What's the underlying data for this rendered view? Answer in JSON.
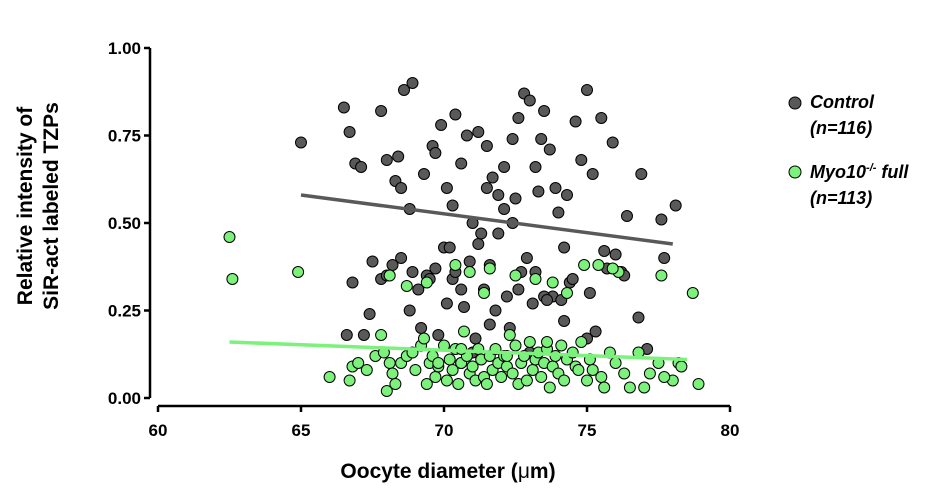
{
  "chart_data": {
    "type": "scatter",
    "xlabel_main": "Oocyte diameter (",
    "xlabel_mu": "μ",
    "xlabel_end": "m)",
    "ylabel_line1": "Relative intensity of",
    "ylabel_line2": "SiR-act labeled TZPs",
    "xlim": [
      60,
      80
    ],
    "ylim": [
      0,
      1
    ],
    "x_ticks": [
      "60",
      "65",
      "70",
      "75",
      "80"
    ],
    "x_tick_values": [
      60,
      65,
      70,
      75,
      80
    ],
    "y_ticks": [
      "1.00",
      "0.75",
      "0.50",
      "0.25",
      "0.00"
    ],
    "y_tick_values": [
      1.0,
      0.75,
      0.5,
      0.25,
      0.0
    ],
    "grid": false,
    "legend_position": "right",
    "series": [
      {
        "name": "Control",
        "name_line2": "(n=116)",
        "color": "#595959",
        "fit": {
          "x": [
            65,
            78
          ],
          "y": [
            0.58,
            0.44
          ]
        },
        "points": [
          [
            65.0,
            0.73
          ],
          [
            66.5,
            0.83
          ],
          [
            66.7,
            0.76
          ],
          [
            66.9,
            0.67
          ],
          [
            67.1,
            0.66
          ],
          [
            67.8,
            0.82
          ],
          [
            68.3,
            0.62
          ],
          [
            68.6,
            0.88
          ],
          [
            68.9,
            0.9
          ],
          [
            68.4,
            0.69
          ],
          [
            68.0,
            0.68
          ],
          [
            68.5,
            0.6
          ],
          [
            68.8,
            0.54
          ],
          [
            69.3,
            0.64
          ],
          [
            69.6,
            0.72
          ],
          [
            69.9,
            0.78
          ],
          [
            69.7,
            0.7
          ],
          [
            70.1,
            0.6
          ],
          [
            70.3,
            0.55
          ],
          [
            70.4,
            0.81
          ],
          [
            70.6,
            0.67
          ],
          [
            70.8,
            0.75
          ],
          [
            71.0,
            0.5
          ],
          [
            71.2,
            0.76
          ],
          [
            71.5,
            0.72
          ],
          [
            71.7,
            0.63
          ],
          [
            71.9,
            0.58
          ],
          [
            72.1,
            0.66
          ],
          [
            72.4,
            0.74
          ],
          [
            72.6,
            0.8
          ],
          [
            72.8,
            0.87
          ],
          [
            73.0,
            0.85
          ],
          [
            73.2,
            0.66
          ],
          [
            73.4,
            0.74
          ],
          [
            73.5,
            0.82
          ],
          [
            73.7,
            0.71
          ],
          [
            73.9,
            0.6
          ],
          [
            74.0,
            0.53
          ],
          [
            74.3,
            0.58
          ],
          [
            74.6,
            0.79
          ],
          [
            74.8,
            0.68
          ],
          [
            75.0,
            0.88
          ],
          [
            75.2,
            0.64
          ],
          [
            75.5,
            0.8
          ],
          [
            75.9,
            0.73
          ],
          [
            76.4,
            0.52
          ],
          [
            76.9,
            0.64
          ],
          [
            77.6,
            0.51
          ],
          [
            78.1,
            0.55
          ],
          [
            76.2,
            0.36
          ],
          [
            75.6,
            0.42
          ],
          [
            75.1,
            0.3
          ],
          [
            74.4,
            0.33
          ],
          [
            74.2,
            0.43
          ],
          [
            73.8,
            0.29
          ],
          [
            73.5,
            0.29
          ],
          [
            73.2,
            0.36
          ],
          [
            72.9,
            0.4
          ],
          [
            72.6,
            0.31
          ],
          [
            72.4,
            0.5
          ],
          [
            72.1,
            0.54
          ],
          [
            71.9,
            0.47
          ],
          [
            71.6,
            0.38
          ],
          [
            71.4,
            0.31
          ],
          [
            71.2,
            0.44
          ],
          [
            70.9,
            0.39
          ],
          [
            70.6,
            0.31
          ],
          [
            70.3,
            0.34
          ],
          [
            70.0,
            0.43
          ],
          [
            69.7,
            0.37
          ],
          [
            69.4,
            0.35
          ],
          [
            69.1,
            0.31
          ],
          [
            68.8,
            0.25
          ],
          [
            68.5,
            0.4
          ],
          [
            68.2,
            0.38
          ],
          [
            67.8,
            0.34
          ],
          [
            67.4,
            0.24
          ],
          [
            67.2,
            0.18
          ],
          [
            66.6,
            0.18
          ],
          [
            66.8,
            0.33
          ],
          [
            67.5,
            0.39
          ],
          [
            68.0,
            0.35
          ],
          [
            68.9,
            0.36
          ],
          [
            69.5,
            0.34
          ],
          [
            70.2,
            0.43
          ],
          [
            70.7,
            0.26
          ],
          [
            71.3,
            0.47
          ],
          [
            71.8,
            0.25
          ],
          [
            72.2,
            0.29
          ],
          [
            72.7,
            0.36
          ],
          [
            73.1,
            0.27
          ],
          [
            73.6,
            0.28
          ],
          [
            74.1,
            0.28
          ],
          [
            74.5,
            0.34
          ],
          [
            75.3,
            0.19
          ],
          [
            75.7,
            0.37
          ],
          [
            76.3,
            0.35
          ],
          [
            76.8,
            0.23
          ],
          [
            77.1,
            0.14
          ],
          [
            77.7,
            0.4
          ],
          [
            69.8,
            0.18
          ],
          [
            70.1,
            0.27
          ],
          [
            70.6,
            0.1
          ],
          [
            71.1,
            0.17
          ],
          [
            71.6,
            0.21
          ],
          [
            72.3,
            0.2
          ],
          [
            73.0,
            0.13
          ],
          [
            74.2,
            0.22
          ],
          [
            75.0,
            0.17
          ],
          [
            76.0,
            0.41
          ],
          [
            69.2,
            0.2
          ],
          [
            70.4,
            0.36
          ],
          [
            71.5,
            0.6
          ],
          [
            72.5,
            0.57
          ],
          [
            73.3,
            0.59
          ],
          [
            71.0,
            0.13
          ]
        ]
      },
      {
        "name": "Myo10",
        "name_sup": "-/-",
        "name_suffix": " full",
        "name_line2": "(n=113)",
        "color": "#7CF27C",
        "fit": {
          "x": [
            62.5,
            78.5
          ],
          "y": [
            0.16,
            0.11
          ]
        },
        "points": [
          [
            62.5,
            0.46
          ],
          [
            62.6,
            0.34
          ],
          [
            64.9,
            0.36
          ],
          [
            66.0,
            0.06
          ],
          [
            66.7,
            0.05
          ],
          [
            66.8,
            0.09
          ],
          [
            67.0,
            0.1
          ],
          [
            67.3,
            0.08
          ],
          [
            67.6,
            0.12
          ],
          [
            67.8,
            0.18
          ],
          [
            67.9,
            0.13
          ],
          [
            68.0,
            0.02
          ],
          [
            68.1,
            0.1
          ],
          [
            68.2,
            0.07
          ],
          [
            68.3,
            0.04
          ],
          [
            68.5,
            0.1
          ],
          [
            68.7,
            0.12
          ],
          [
            68.9,
            0.13
          ],
          [
            69.0,
            0.08
          ],
          [
            69.2,
            0.15
          ],
          [
            69.3,
            0.17
          ],
          [
            69.4,
            0.04
          ],
          [
            69.5,
            0.1
          ],
          [
            69.6,
            0.12
          ],
          [
            69.7,
            0.06
          ],
          [
            69.8,
            0.09
          ],
          [
            70.0,
            0.15
          ],
          [
            70.1,
            0.05
          ],
          [
            70.2,
            0.11
          ],
          [
            70.3,
            0.08
          ],
          [
            70.4,
            0.14
          ],
          [
            70.5,
            0.04
          ],
          [
            70.6,
            0.1
          ],
          [
            70.7,
            0.19
          ],
          [
            70.8,
            0.12
          ],
          [
            70.9,
            0.07
          ],
          [
            71.0,
            0.09
          ],
          [
            71.1,
            0.05
          ],
          [
            71.2,
            0.14
          ],
          [
            71.3,
            0.11
          ],
          [
            71.4,
            0.06
          ],
          [
            71.5,
            0.04
          ],
          [
            71.6,
            0.12
          ],
          [
            71.7,
            0.08
          ],
          [
            71.8,
            0.14
          ],
          [
            71.9,
            0.1
          ],
          [
            72.0,
            0.06
          ],
          [
            72.1,
            0.12
          ],
          [
            72.2,
            0.09
          ],
          [
            72.3,
            0.18
          ],
          [
            72.4,
            0.07
          ],
          [
            72.5,
            0.15
          ],
          [
            72.6,
            0.04
          ],
          [
            72.7,
            0.1
          ],
          [
            72.8,
            0.12
          ],
          [
            72.9,
            0.05
          ],
          [
            73.0,
            0.16
          ],
          [
            73.1,
            0.08
          ],
          [
            73.2,
            0.11
          ],
          [
            73.3,
            0.13
          ],
          [
            73.4,
            0.06
          ],
          [
            73.5,
            0.1
          ],
          [
            73.6,
            0.14
          ],
          [
            73.7,
            0.03
          ],
          [
            73.8,
            0.09
          ],
          [
            73.9,
            0.12
          ],
          [
            74.0,
            0.07
          ],
          [
            74.1,
            0.15
          ],
          [
            74.2,
            0.05
          ],
          [
            74.3,
            0.11
          ],
          [
            74.5,
            0.13
          ],
          [
            74.6,
            0.09
          ],
          [
            74.8,
            0.16
          ],
          [
            75.0,
            0.05
          ],
          [
            75.1,
            0.11
          ],
          [
            75.2,
            0.08
          ],
          [
            75.5,
            0.06
          ],
          [
            75.6,
            0.03
          ],
          [
            75.8,
            0.13
          ],
          [
            76.0,
            0.1
          ],
          [
            76.3,
            0.07
          ],
          [
            76.5,
            0.03
          ],
          [
            76.8,
            0.13
          ],
          [
            77.0,
            0.03
          ],
          [
            77.2,
            0.07
          ],
          [
            77.5,
            0.1
          ],
          [
            78.0,
            0.05
          ],
          [
            78.2,
            0.1
          ],
          [
            78.3,
            0.09
          ],
          [
            78.7,
            0.3
          ],
          [
            78.9,
            0.04
          ],
          [
            77.6,
            0.35
          ],
          [
            77.7,
            0.06
          ],
          [
            76.1,
            0.36
          ],
          [
            75.9,
            0.37
          ],
          [
            75.4,
            0.38
          ],
          [
            74.9,
            0.38
          ],
          [
            74.3,
            0.3
          ],
          [
            73.8,
            0.33
          ],
          [
            73.2,
            0.34
          ],
          [
            72.5,
            0.35
          ],
          [
            71.6,
            0.37
          ],
          [
            70.9,
            0.36
          ],
          [
            70.4,
            0.38
          ],
          [
            69.4,
            0.33
          ],
          [
            68.7,
            0.32
          ],
          [
            68.1,
            0.35
          ],
          [
            69.8,
            0.1
          ],
          [
            70.6,
            0.14
          ],
          [
            71.4,
            0.3
          ],
          [
            72.2,
            0.12
          ],
          [
            73.6,
            0.16
          ],
          [
            74.7,
            0.08
          ]
        ]
      }
    ]
  }
}
